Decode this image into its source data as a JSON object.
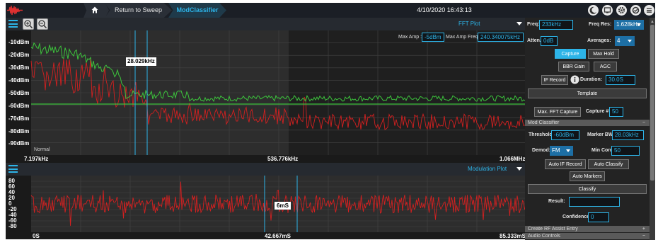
{
  "topbar": {
    "home_icon": "home-icon",
    "return_label": "Return to Sweep",
    "active_crumb": "ModClassifier",
    "datetime": "4/10/2020 16:43:13",
    "icons": [
      "moon-icon",
      "display-icon",
      "gear-icon",
      "settings-icon",
      "menu-icon"
    ]
  },
  "fft": {
    "title": "FFT Plot",
    "max_amp_label": "Max Amp :",
    "max_amp_value": "-5dBm",
    "max_amp_freq_label": "Max Amp Freq :",
    "max_amp_freq_value": "240.340075kHz",
    "marker_label": "28.029kHz",
    "mode_label": "Normal",
    "y_ticks": [
      "-10dBm",
      "-20dBm",
      "-30dBm",
      "-40dBm",
      "-50dBm",
      "-60dBm",
      "-70dBm",
      "-80dBm",
      "-90dBm"
    ],
    "x_ticks": [
      "7.197kHz",
      "536.776kHz",
      "1.066MHz"
    ]
  },
  "mod": {
    "title": "Modulation Plot",
    "marker_label": "6mS",
    "y_ticks": [
      "80",
      "60",
      "40",
      "20",
      "0",
      "-20",
      "-40",
      "-60",
      "-80"
    ],
    "x_ticks": [
      "0S",
      "42.667mS",
      "85.333mS"
    ]
  },
  "side": {
    "freq_label": "Freq:",
    "freq_value": "233kHz",
    "freq_res_label": "Freq Res:",
    "freq_res_value": "1.628kHz",
    "atten_label": "Atten.:",
    "atten_value": "0dB",
    "averages_label": "Averages:",
    "averages_value": "4",
    "capture_btn": "Capture",
    "max_hold_btn": "Max Hold",
    "bbr_gain_btn": "BBR Gain",
    "agc_btn": "AGC",
    "if_record_btn": "IF Record",
    "duration_label": "Duration:",
    "duration_value": "30.0S",
    "template_btn": "Template",
    "max_fft_btn": "Max. FFT Capture",
    "capture_num_label": "Capture #:",
    "capture_num_value": "50",
    "mod_classifier_section": "Mod Classifier",
    "threshold_label": "Threshold:",
    "threshold_value": "-60dBm",
    "marker_bw_label": "Marker BW:",
    "marker_bw_value": "28.03kHz",
    "demod_label": "Demod:",
    "demod_value": "FM",
    "min_conf_label": "Min Conf:",
    "min_conf_value": "50",
    "auto_if_btn": "Auto IF Record",
    "auto_classify_btn": "Auto Classify",
    "auto_markers_btn": "Auto Markers",
    "classify_btn": "Classify",
    "result_label": "Result:",
    "result_value": "",
    "confidence_label": "Confidence:",
    "confidence_value": "0",
    "create_rf_section": "Create RF Assist Entry",
    "audio_section": "Audio Controls"
  },
  "colors": {
    "accent": "#2db4e8",
    "green_trace": "#3cc43c",
    "red_trace": "#d42020",
    "background": "#1a1a1a"
  }
}
